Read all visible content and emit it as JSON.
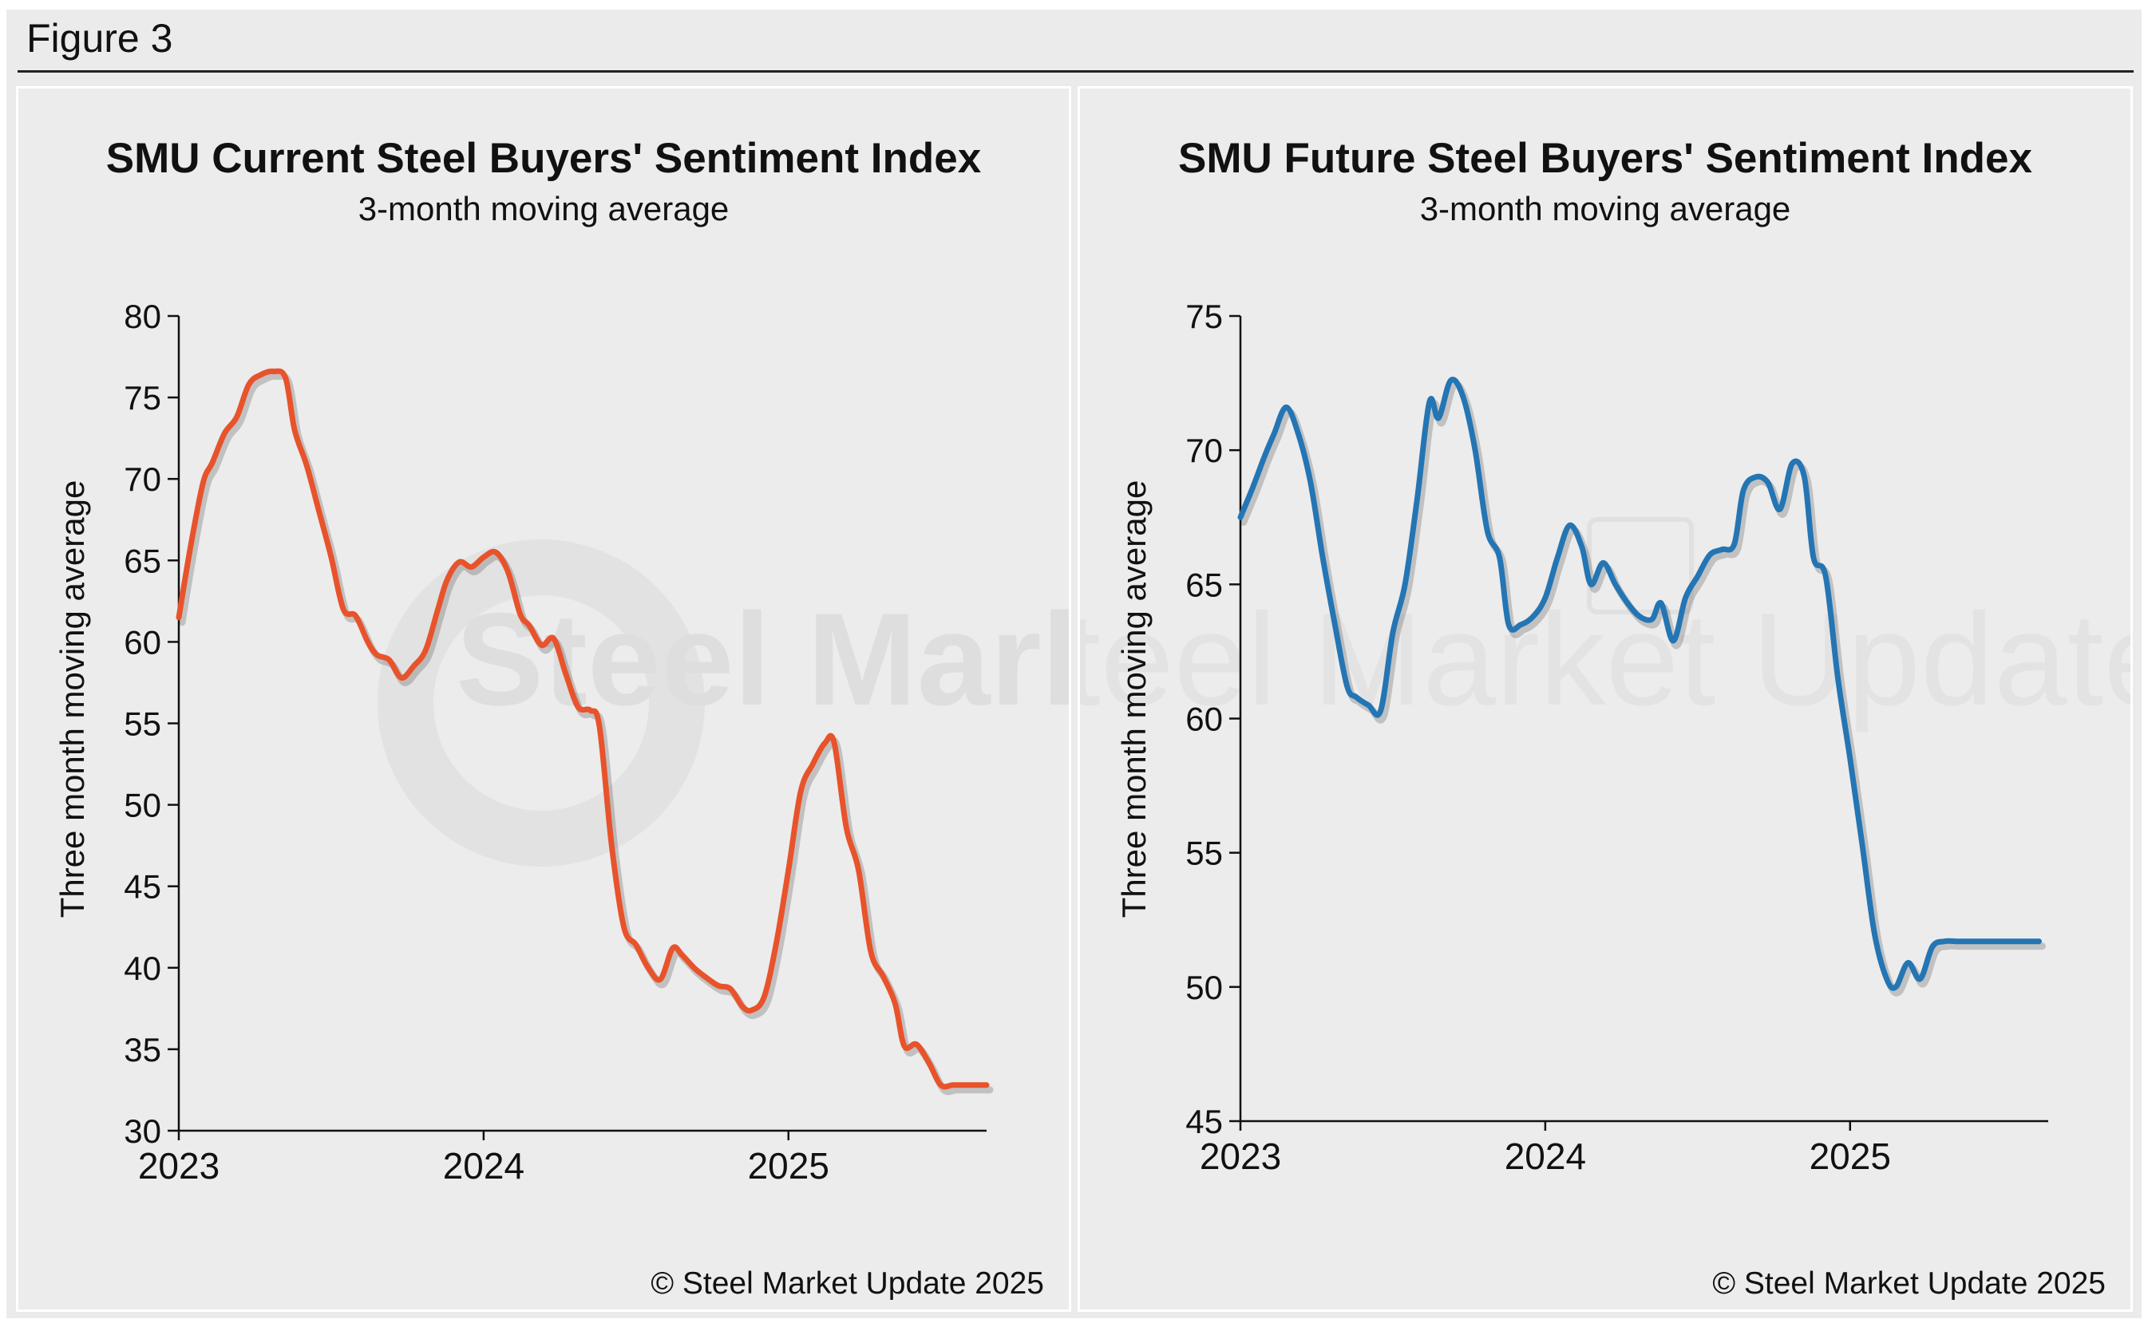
{
  "figure_label": "Figure 3",
  "watermark": "Steel Market Update",
  "chart_data": [
    {
      "type": "line",
      "title": "SMU Current Steel Buyers' Sentiment Index",
      "subtitle": "3-month moving average",
      "ylabel": "Three month moving average",
      "xlabel": "",
      "ylim": [
        30,
        80
      ],
      "yticks": [
        30,
        35,
        40,
        45,
        50,
        55,
        60,
        65,
        70,
        75,
        80
      ],
      "xlim": [
        2023.0,
        2025.65
      ],
      "xticks": [
        2023,
        2024,
        2025
      ],
      "xtick_labels": [
        "2023",
        "2024",
        "2025"
      ],
      "grid": false,
      "color": "#e8532b",
      "copyright": "© Steel Market Update 2025",
      "series": [
        {
          "x": [
            2023.0,
            2023.04,
            2023.08,
            2023.11,
            2023.15,
            2023.19,
            2023.23,
            2023.27,
            2023.31,
            2023.35,
            2023.38,
            2023.42,
            2023.46,
            2023.5,
            2023.54,
            2023.58,
            2023.62,
            2023.65,
            2023.69,
            2023.73,
            2023.77,
            2023.81,
            2023.85,
            2023.88,
            2023.92,
            2023.96,
            2024.0,
            2024.04,
            2024.08,
            2024.12,
            2024.15,
            2024.19,
            2024.23,
            2024.27,
            2024.31,
            2024.35,
            2024.38,
            2024.42,
            2024.46,
            2024.5,
            2024.54,
            2024.58,
            2024.62,
            2024.65,
            2024.69,
            2024.73,
            2024.77,
            2024.81,
            2024.85,
            2024.88,
            2024.92,
            2024.96,
            2025.0,
            2025.04,
            2025.08,
            2025.12,
            2025.15,
            2025.19,
            2025.23,
            2025.27,
            2025.31,
            2025.35,
            2025.38,
            2025.42,
            2025.46,
            2025.5,
            2025.54,
            2025.58,
            2025.62,
            2025.65
          ],
          "y": [
            61.5,
            66.0,
            69.8,
            71.0,
            72.8,
            73.8,
            75.8,
            76.4,
            76.6,
            76.2,
            73.0,
            70.8,
            68.0,
            65.2,
            62.0,
            61.6,
            60.0,
            59.2,
            58.9,
            57.8,
            58.5,
            59.5,
            62.0,
            63.8,
            64.9,
            64.6,
            65.2,
            65.5,
            64.3,
            61.7,
            61.0,
            59.8,
            60.2,
            58.0,
            56.0,
            55.8,
            54.8,
            47.5,
            42.5,
            41.4,
            40.0,
            39.3,
            41.2,
            40.8,
            40.0,
            39.4,
            38.9,
            38.7,
            37.6,
            37.4,
            38.2,
            41.5,
            46.0,
            50.8,
            52.5,
            53.8,
            53.8,
            48.6,
            46.0,
            41.0,
            39.5,
            37.8,
            35.2,
            35.3,
            34.2,
            32.8,
            32.8,
            32.8,
            32.8,
            32.8
          ]
        }
      ]
    },
    {
      "type": "line",
      "title": "SMU Future Steel Buyers' Sentiment Index",
      "subtitle": "3-month moving average",
      "ylabel": "Three month moving average",
      "xlabel": "",
      "ylim": [
        45,
        75
      ],
      "yticks": [
        45,
        50,
        55,
        60,
        65,
        70,
        75
      ],
      "xlim": [
        2023.0,
        2025.65
      ],
      "xticks": [
        2023,
        2024,
        2025
      ],
      "xtick_labels": [
        "2023",
        "2024",
        "2025"
      ],
      "grid": false,
      "color": "#2475b4",
      "copyright": "© Steel Market Update 2025",
      "series": [
        {
          "x": [
            2023.0,
            2023.04,
            2023.08,
            2023.11,
            2023.15,
            2023.19,
            2023.23,
            2023.27,
            2023.31,
            2023.35,
            2023.38,
            2023.42,
            2023.46,
            2023.5,
            2023.54,
            2023.58,
            2023.62,
            2023.65,
            2023.69,
            2023.73,
            2023.77,
            2023.81,
            2023.85,
            2023.88,
            2023.92,
            2023.96,
            2024.0,
            2024.04,
            2024.08,
            2024.12,
            2024.15,
            2024.19,
            2024.23,
            2024.27,
            2024.31,
            2024.35,
            2024.38,
            2024.42,
            2024.46,
            2024.5,
            2024.54,
            2024.58,
            2024.62,
            2024.65,
            2024.69,
            2024.73,
            2024.77,
            2024.81,
            2024.85,
            2024.88,
            2024.92,
            2024.96,
            2025.0,
            2025.04,
            2025.08,
            2025.12,
            2025.15,
            2025.19,
            2025.23,
            2025.27,
            2025.31,
            2025.35,
            2025.38,
            2025.42,
            2025.46,
            2025.5,
            2025.54,
            2025.58,
            2025.62
          ],
          "y": [
            67.5,
            68.6,
            69.8,
            70.6,
            71.6,
            70.6,
            68.8,
            66.0,
            63.5,
            61.2,
            60.8,
            60.5,
            60.3,
            63.2,
            65.0,
            68.2,
            71.8,
            71.2,
            72.6,
            72.0,
            70.0,
            67.0,
            66.0,
            63.5,
            63.5,
            63.8,
            64.5,
            66.0,
            67.2,
            66.4,
            65.0,
            65.8,
            65.0,
            64.3,
            63.8,
            63.7,
            64.3,
            62.9,
            64.5,
            65.3,
            66.1,
            66.3,
            66.5,
            68.5,
            69.0,
            68.8,
            67.8,
            69.5,
            69.0,
            66.0,
            65.3,
            61.5,
            58.5,
            55.3,
            52.0,
            50.3,
            50.0,
            50.9,
            50.3,
            51.5,
            51.7,
            51.7,
            51.7,
            51.7,
            51.7,
            51.7,
            51.7,
            51.7,
            51.7
          ]
        }
      ]
    }
  ]
}
